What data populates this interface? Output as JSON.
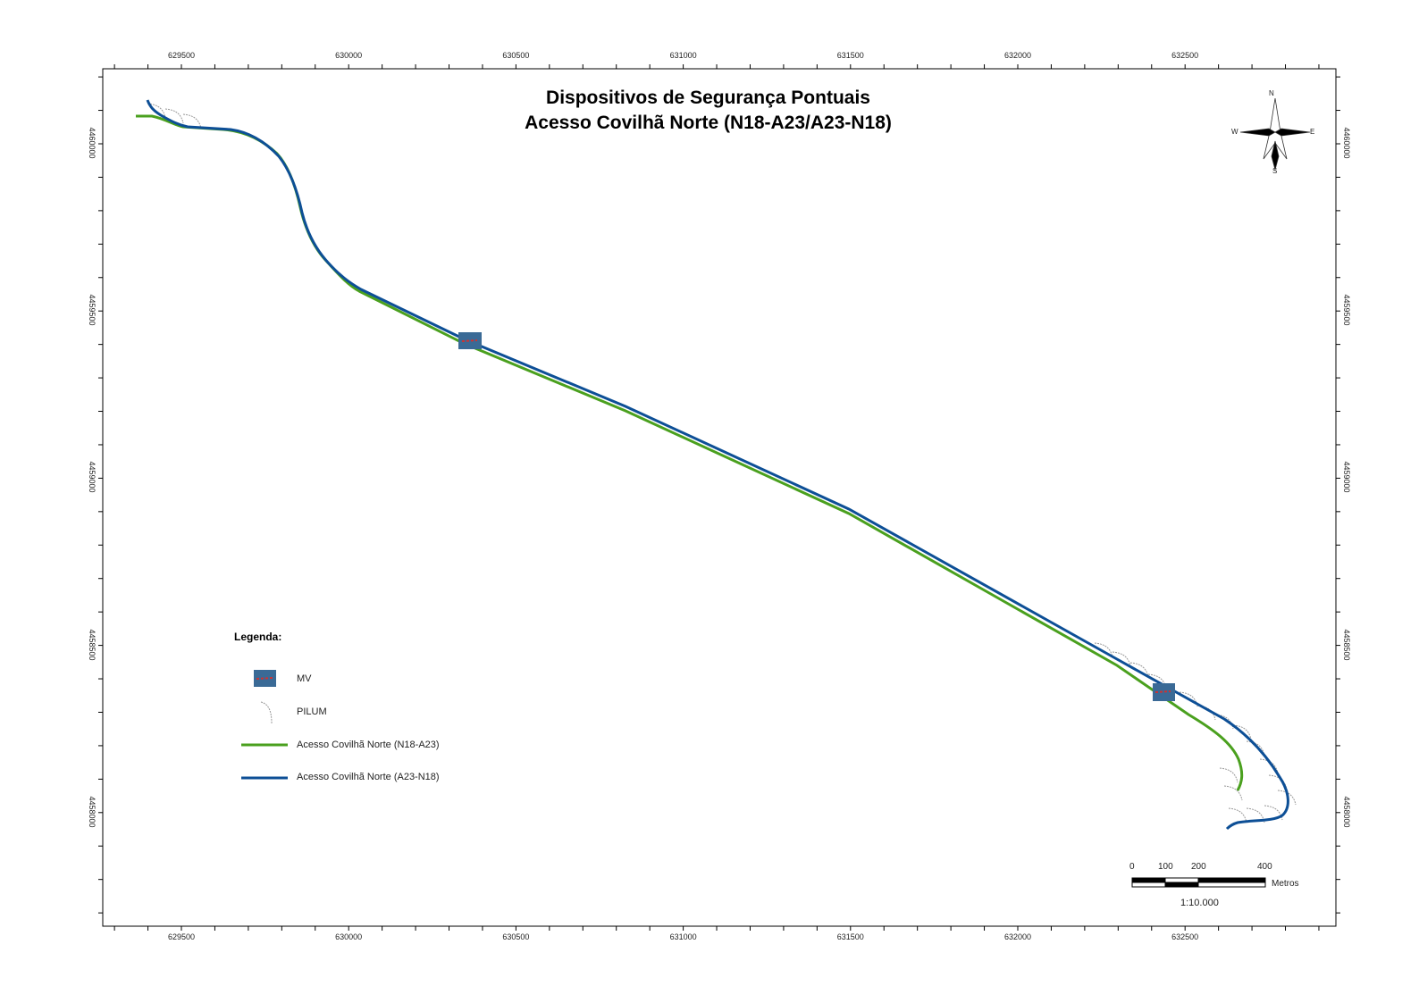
{
  "title": {
    "line1": "Dispositivos de Segurança Pontuais",
    "line2": "Acesso Covilhã Norte (N18-A23/A23-N18)"
  },
  "x_axis_labels": [
    "629500",
    "630000",
    "630500",
    "631000",
    "631500",
    "632000",
    "632500"
  ],
  "y_axis_labels": [
    "4460000",
    "4459500",
    "4459000",
    "4458500",
    "4458000"
  ],
  "compass": {
    "n": "N",
    "s": "S",
    "e": "E",
    "w": "W"
  },
  "legend": {
    "title": "Legenda:",
    "items": [
      {
        "label": "MV",
        "icon": "mv-device-icon"
      },
      {
        "label": "PILUM",
        "icon": "pilum-icon"
      },
      {
        "label": "Acesso Covilhã Norte (N18-A23)",
        "color": "#4aa01e"
      },
      {
        "label": "Acesso Covilhã Norte (A23-N18)",
        "color": "#0d4f96"
      }
    ]
  },
  "scale_bar": {
    "ticks": [
      "0",
      "100",
      "200",
      "400"
    ],
    "unit": "Metros",
    "ratio": "1:10.000"
  },
  "colors": {
    "green_route": "#4aa01e",
    "blue_route": "#0d4f96",
    "mv_box": "#3a6a96"
  }
}
